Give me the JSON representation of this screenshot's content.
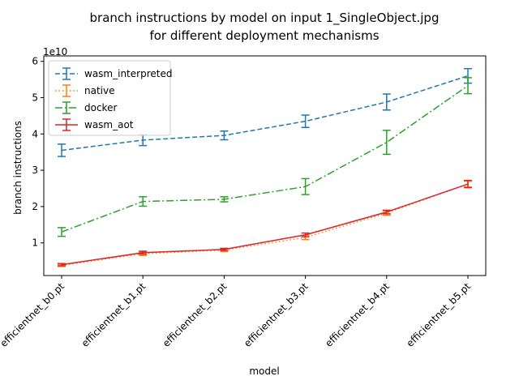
{
  "chart_data": {
    "type": "line",
    "title": "branch instructions by model on input 1_SingleObject.jpg",
    "subtitle": "for different deployment mechanisms",
    "xlabel": "model",
    "ylabel": "branch instructions",
    "y_offset_label": "1e10",
    "categories": [
      "efficientnet_b0.pt",
      "efficientnet_b1.pt",
      "efficientnet_b2.pt",
      "efficientnet_b3.pt",
      "efficientnet_b4.pt",
      "efficientnet_b5.pt"
    ],
    "y_ticks": [
      1,
      2,
      3,
      4,
      5,
      6
    ],
    "y_tick_labels": [
      "1",
      "2",
      "3",
      "4",
      "5",
      "6"
    ],
    "ylim": [
      0.1,
      6.15
    ],
    "y_unit_multiplier": 10000000000.0,
    "grid": false,
    "legend_position": "upper-left",
    "series": [
      {
        "name": "wasm_interpreted",
        "color": "#1f77b4",
        "dash": "dashed",
        "values": [
          3.55,
          3.83,
          3.96,
          4.35,
          4.88,
          5.6
        ],
        "errors": [
          0.17,
          0.15,
          0.12,
          0.17,
          0.22,
          0.2
        ]
      },
      {
        "name": "native",
        "color": "#ff7f0e",
        "dash": "dotted",
        "values": [
          0.38,
          0.7,
          0.8,
          1.15,
          1.82,
          2.62
        ],
        "errors": [
          0.03,
          0.05,
          0.04,
          0.06,
          0.06,
          0.08
        ]
      },
      {
        "name": "docker",
        "color": "#2ca02c",
        "dash": "dashdot",
        "values": [
          1.3,
          2.14,
          2.2,
          2.55,
          3.77,
          5.33
        ],
        "errors": [
          0.12,
          0.13,
          0.07,
          0.22,
          0.33,
          0.22
        ]
      },
      {
        "name": "wasm_aot",
        "color": "#d62728",
        "dash": "solid",
        "values": [
          0.4,
          0.73,
          0.82,
          1.22,
          1.85,
          2.62
        ],
        "errors": [
          0.03,
          0.04,
          0.03,
          0.05,
          0.05,
          0.1
        ]
      }
    ]
  }
}
